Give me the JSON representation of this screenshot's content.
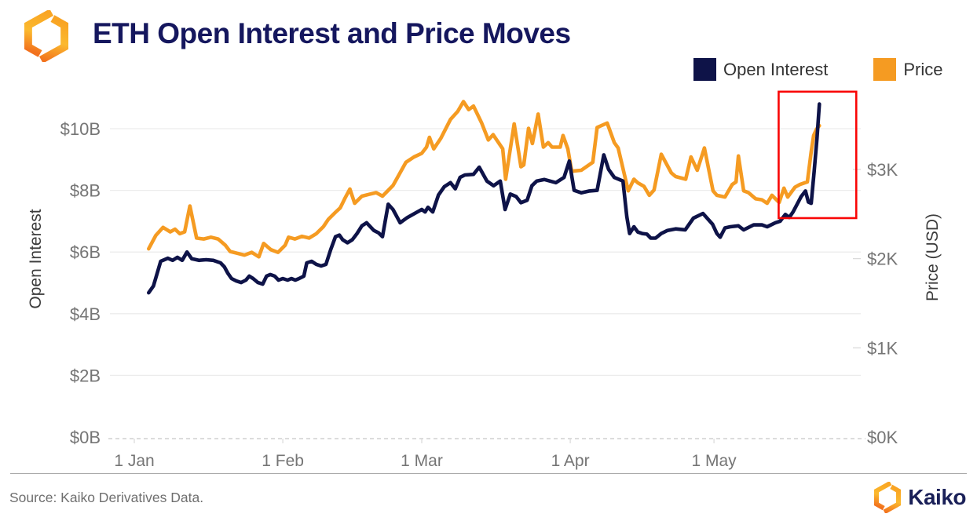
{
  "header": {
    "title": "ETH Open Interest and Price Moves"
  },
  "legend": [
    {
      "label": "Open Interest",
      "color": "#0E1348"
    },
    {
      "label": "Price",
      "color": "#F59B22"
    }
  ],
  "footer": {
    "source": "Source: Kaiko Derivatives Data.",
    "brand": "Kaiko"
  },
  "chart_data": {
    "type": "line",
    "title": "ETH Open Interest and Price Moves",
    "legend_position": "top-right",
    "grid": "horizontal-only",
    "x_axis": {
      "tick_labels": [
        "1 Jan",
        "1 Feb",
        "1 Mar",
        "1 Apr",
        "1 May"
      ],
      "tick_days": [
        0,
        31,
        60,
        91,
        121
      ]
    },
    "y_left": {
      "label": "Open Interest",
      "tick_labels": [
        "$0B",
        "$2B",
        "$4B",
        "$6B",
        "$8B",
        "$10B"
      ],
      "tick_values": [
        0,
        2,
        4,
        6,
        8,
        10
      ],
      "range": [
        0,
        11.3
      ],
      "unit": "USD billions"
    },
    "y_right": {
      "label": "Price (USD)",
      "tick_labels": [
        "$0K",
        "$1K",
        "$2K",
        "$3K"
      ],
      "tick_values": [
        0,
        1,
        2,
        3
      ],
      "range": [
        0,
        3.9
      ],
      "unit": "USD thousands"
    },
    "annotation_box": {
      "day_start": 134.5,
      "day_end": 150.7,
      "value_low": 7.1,
      "value_high": 11.2,
      "color": "#F90606"
    },
    "series": [
      {
        "name": "Open Interest",
        "axis": "left",
        "color": "#0E1348",
        "points": [
          [
            3,
            4.68
          ],
          [
            4,
            4.9
          ],
          [
            5.5,
            5.7
          ],
          [
            7,
            5.8
          ],
          [
            8,
            5.73
          ],
          [
            9,
            5.83
          ],
          [
            10,
            5.73
          ],
          [
            11,
            6.0
          ],
          [
            12,
            5.78
          ],
          [
            13.5,
            5.73
          ],
          [
            15,
            5.75
          ],
          [
            16.5,
            5.73
          ],
          [
            18,
            5.65
          ],
          [
            18.8,
            5.52
          ],
          [
            19.5,
            5.32
          ],
          [
            20.3,
            5.14
          ],
          [
            21.3,
            5.06
          ],
          [
            22.3,
            5.01
          ],
          [
            23.3,
            5.09
          ],
          [
            24,
            5.22
          ],
          [
            24.8,
            5.14
          ],
          [
            25.8,
            5.01
          ],
          [
            26.8,
            4.96
          ],
          [
            27.6,
            5.22
          ],
          [
            28.4,
            5.27
          ],
          [
            29.3,
            5.22
          ],
          [
            30.1,
            5.09
          ],
          [
            31,
            5.14
          ],
          [
            32,
            5.09
          ],
          [
            32.8,
            5.14
          ],
          [
            33.6,
            5.09
          ],
          [
            34.4,
            5.14
          ],
          [
            35.4,
            5.22
          ],
          [
            36,
            5.65
          ],
          [
            37,
            5.7
          ],
          [
            38,
            5.6
          ],
          [
            39,
            5.55
          ],
          [
            40,
            5.6
          ],
          [
            41,
            6.08
          ],
          [
            42,
            6.5
          ],
          [
            42.8,
            6.55
          ],
          [
            43.5,
            6.4
          ],
          [
            44.5,
            6.3
          ],
          [
            45.5,
            6.4
          ],
          [
            46.5,
            6.6
          ],
          [
            47.5,
            6.85
          ],
          [
            48.5,
            6.95
          ],
          [
            50,
            6.7
          ],
          [
            51,
            6.62
          ],
          [
            51.8,
            6.5
          ],
          [
            53,
            7.55
          ],
          [
            54,
            7.38
          ],
          [
            55.5,
            6.95
          ],
          [
            57,
            7.12
          ],
          [
            58.5,
            7.25
          ],
          [
            60,
            7.38
          ],
          [
            60.7,
            7.3
          ],
          [
            61.3,
            7.45
          ],
          [
            62.3,
            7.3
          ],
          [
            63.5,
            7.85
          ],
          [
            64.7,
            8.12
          ],
          [
            66,
            8.25
          ],
          [
            67,
            8.05
          ],
          [
            68,
            8.42
          ],
          [
            69,
            8.5
          ],
          [
            70.8,
            8.52
          ],
          [
            72,
            8.75
          ],
          [
            73.6,
            8.3
          ],
          [
            75,
            8.15
          ],
          [
            76.4,
            8.3
          ],
          [
            77.4,
            7.38
          ],
          [
            78.5,
            7.88
          ],
          [
            79.7,
            7.8
          ],
          [
            80.7,
            7.6
          ],
          [
            82,
            7.68
          ],
          [
            83,
            8.15
          ],
          [
            84,
            8.3
          ],
          [
            85.6,
            8.35
          ],
          [
            88,
            8.25
          ],
          [
            89.7,
            8.42
          ],
          [
            90.8,
            8.95
          ],
          [
            91.8,
            8.0
          ],
          [
            93.3,
            7.92
          ],
          [
            95,
            7.98
          ],
          [
            96.6,
            8.0
          ],
          [
            98,
            9.15
          ],
          [
            99,
            8.68
          ],
          [
            100.2,
            8.42
          ],
          [
            102,
            8.3
          ],
          [
            102.8,
            7.15
          ],
          [
            103.4,
            6.6
          ],
          [
            104.3,
            6.82
          ],
          [
            105.1,
            6.65
          ],
          [
            106,
            6.6
          ],
          [
            107,
            6.58
          ],
          [
            107.8,
            6.45
          ],
          [
            108.8,
            6.45
          ],
          [
            110,
            6.6
          ],
          [
            111.3,
            6.7
          ],
          [
            113,
            6.75
          ],
          [
            115,
            6.72
          ],
          [
            116.7,
            7.1
          ],
          [
            118.7,
            7.25
          ],
          [
            120.7,
            6.9
          ],
          [
            121.6,
            6.6
          ],
          [
            122.3,
            6.48
          ],
          [
            123.3,
            6.78
          ],
          [
            124.4,
            6.82
          ],
          [
            126.1,
            6.85
          ],
          [
            127.2,
            6.72
          ],
          [
            129.3,
            6.88
          ],
          [
            131,
            6.88
          ],
          [
            132.1,
            6.82
          ],
          [
            133.8,
            6.95
          ],
          [
            134.8,
            7.0
          ],
          [
            135.9,
            7.22
          ],
          [
            136.7,
            7.12
          ],
          [
            137.5,
            7.3
          ],
          [
            139.2,
            7.8
          ],
          [
            140.1,
            7.98
          ],
          [
            140.7,
            7.62
          ],
          [
            141.3,
            7.58
          ],
          [
            141.9,
            8.6
          ],
          [
            142.5,
            9.7
          ],
          [
            143,
            10.8
          ]
        ]
      },
      {
        "name": "Price",
        "axis": "right",
        "color": "#F59B22",
        "points": [
          [
            3,
            2.11
          ],
          [
            4.5,
            2.26
          ],
          [
            6,
            2.35
          ],
          [
            7.5,
            2.3
          ],
          [
            8.5,
            2.33
          ],
          [
            9.5,
            2.28
          ],
          [
            10.5,
            2.3
          ],
          [
            11.6,
            2.59
          ],
          [
            13,
            2.23
          ],
          [
            14.5,
            2.22
          ],
          [
            16,
            2.24
          ],
          [
            17.5,
            2.22
          ],
          [
            19,
            2.15
          ],
          [
            20,
            2.08
          ],
          [
            21.5,
            2.06
          ],
          [
            23,
            2.04
          ],
          [
            24.5,
            2.07
          ],
          [
            26,
            2.02
          ],
          [
            27,
            2.17
          ],
          [
            28.5,
            2.1
          ],
          [
            30,
            2.07
          ],
          [
            31.5,
            2.15
          ],
          [
            32.2,
            2.24
          ],
          [
            33.5,
            2.22
          ],
          [
            35,
            2.25
          ],
          [
            36.5,
            2.23
          ],
          [
            38,
            2.28
          ],
          [
            39.5,
            2.36
          ],
          [
            40.5,
            2.44
          ],
          [
            42,
            2.52
          ],
          [
            43,
            2.57
          ],
          [
            44,
            2.68
          ],
          [
            45,
            2.78
          ],
          [
            46,
            2.62
          ],
          [
            47.5,
            2.7
          ],
          [
            49,
            2.72
          ],
          [
            50.5,
            2.74
          ],
          [
            51.8,
            2.7
          ],
          [
            54,
            2.82
          ],
          [
            56.7,
            3.08
          ],
          [
            58.4,
            3.14
          ],
          [
            60,
            3.18
          ],
          [
            61,
            3.25
          ],
          [
            61.6,
            3.36
          ],
          [
            62.5,
            3.23
          ],
          [
            64,
            3.35
          ],
          [
            66,
            3.56
          ],
          [
            67.5,
            3.65
          ],
          [
            68.7,
            3.76
          ],
          [
            69.8,
            3.67
          ],
          [
            70.8,
            3.71
          ],
          [
            72.5,
            3.52
          ],
          [
            73.9,
            3.33
          ],
          [
            74.9,
            3.39
          ],
          [
            76.9,
            3.23
          ],
          [
            77.5,
            2.89
          ],
          [
            79.3,
            3.51
          ],
          [
            80.7,
            3.03
          ],
          [
            81.3,
            3.05
          ],
          [
            82.3,
            3.46
          ],
          [
            83.1,
            3.29
          ],
          [
            84.3,
            3.62
          ],
          [
            85.4,
            3.25
          ],
          [
            86.4,
            3.3
          ],
          [
            87.2,
            3.25
          ],
          [
            88.9,
            3.25
          ],
          [
            89.5,
            3.38
          ],
          [
            90.5,
            3.23
          ],
          [
            91.3,
            2.98
          ],
          [
            93.3,
            2.99
          ],
          [
            95.7,
            3.08
          ],
          [
            96.6,
            3.47
          ],
          [
            98.7,
            3.52
          ],
          [
            100.2,
            3.3
          ],
          [
            101,
            3.24
          ],
          [
            103.1,
            2.76
          ],
          [
            104.3,
            2.89
          ],
          [
            105.1,
            2.85
          ],
          [
            106.4,
            2.81
          ],
          [
            107.5,
            2.71
          ],
          [
            108.5,
            2.77
          ],
          [
            110,
            3.17
          ],
          [
            112.1,
            2.96
          ],
          [
            113,
            2.92
          ],
          [
            115.1,
            2.89
          ],
          [
            116.2,
            3.14
          ],
          [
            117.5,
            2.99
          ],
          [
            119,
            3.24
          ],
          [
            120.8,
            2.76
          ],
          [
            121.6,
            2.71
          ],
          [
            123.3,
            2.69
          ],
          [
            124.8,
            2.83
          ],
          [
            125.6,
            2.86
          ],
          [
            126.1,
            3.15
          ],
          [
            127.2,
            2.76
          ],
          [
            128.2,
            2.74
          ],
          [
            129.7,
            2.67
          ],
          [
            131,
            2.66
          ],
          [
            132.1,
            2.62
          ],
          [
            133.1,
            2.71
          ],
          [
            134.6,
            2.63
          ],
          [
            135.6,
            2.79
          ],
          [
            136.4,
            2.69
          ],
          [
            137.9,
            2.8
          ],
          [
            138.9,
            2.83
          ],
          [
            140.5,
            2.86
          ],
          [
            141.3,
            3.2
          ],
          [
            141.8,
            3.38
          ],
          [
            142.4,
            3.45
          ],
          [
            143,
            3.49
          ]
        ]
      }
    ]
  }
}
